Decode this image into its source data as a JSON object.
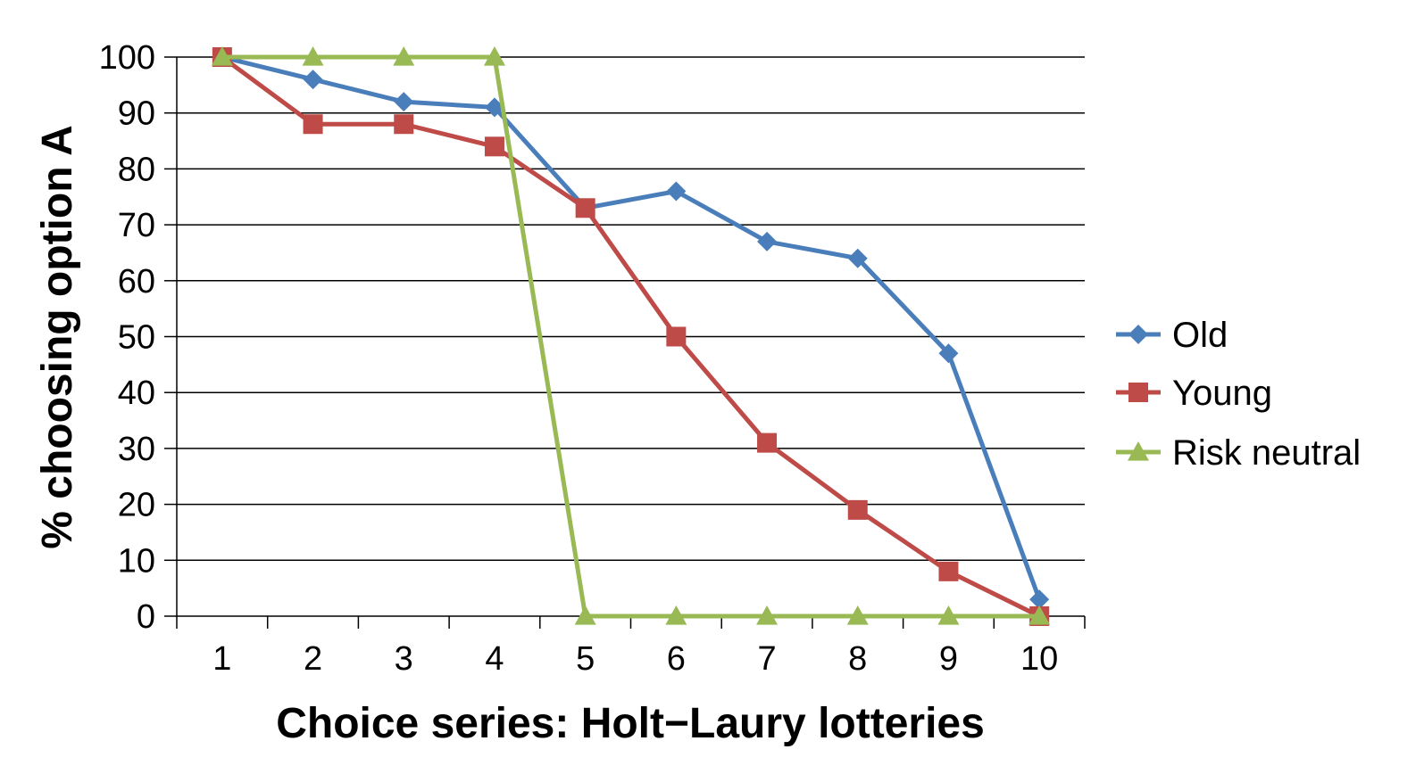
{
  "chart_data": {
    "type": "line",
    "title": "",
    "xlabel": "Choice series: Holt−Laury lotteries",
    "ylabel": "% choosing option A",
    "x": [
      1,
      2,
      3,
      4,
      5,
      6,
      7,
      8,
      9,
      10
    ],
    "x_tick_labels": [
      "1",
      "2",
      "3",
      "4",
      "5",
      "6",
      "7",
      "8",
      "9",
      "10"
    ],
    "y_ticks": [
      0,
      10,
      20,
      30,
      40,
      50,
      60,
      70,
      80,
      90,
      100
    ],
    "y_tick_labels": [
      "0",
      "10",
      "20",
      "30",
      "40",
      "50",
      "60",
      "70",
      "80",
      "90",
      "100"
    ],
    "ylim": [
      0,
      100
    ],
    "grid": "horizontal",
    "legend_position": "right",
    "series": [
      {
        "name": "Old",
        "color": "#4a7ebb",
        "marker": "diamond",
        "values": [
          100,
          96,
          92,
          91,
          73,
          76,
          67,
          64,
          47,
          3
        ]
      },
      {
        "name": "Young",
        "color": "#be4b48",
        "marker": "square",
        "values": [
          100,
          88,
          88,
          84,
          73,
          50,
          31,
          19,
          8,
          0
        ]
      },
      {
        "name": "Risk neutral",
        "color": "#98b954",
        "marker": "triangle",
        "values": [
          100,
          100,
          100,
          100,
          0,
          0,
          0,
          0,
          0,
          0
        ]
      }
    ]
  }
}
